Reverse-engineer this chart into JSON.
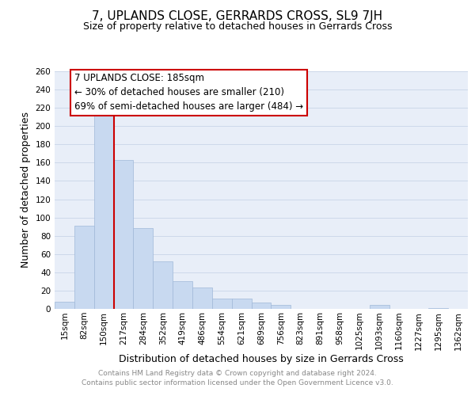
{
  "title": "7, UPLANDS CLOSE, GERRARDS CROSS, SL9 7JH",
  "subtitle": "Size of property relative to detached houses in Gerrards Cross",
  "xlabel": "Distribution of detached houses by size in Gerrards Cross",
  "ylabel": "Number of detached properties",
  "bin_labels": [
    "15sqm",
    "82sqm",
    "150sqm",
    "217sqm",
    "284sqm",
    "352sqm",
    "419sqm",
    "486sqm",
    "554sqm",
    "621sqm",
    "689sqm",
    "756sqm",
    "823sqm",
    "891sqm",
    "958sqm",
    "1025sqm",
    "1093sqm",
    "1160sqm",
    "1227sqm",
    "1295sqm",
    "1362sqm"
  ],
  "bar_heights": [
    8,
    91,
    213,
    163,
    88,
    52,
    30,
    23,
    11,
    11,
    7,
    4,
    0,
    0,
    0,
    0,
    4,
    0,
    0,
    1,
    0
  ],
  "bar_color": "#c8d9f0",
  "bar_edge_color": "#a0b8d8",
  "vline_x_index": 2,
  "vline_color": "#cc0000",
  "ylim": [
    0,
    260
  ],
  "yticks": [
    0,
    20,
    40,
    60,
    80,
    100,
    120,
    140,
    160,
    180,
    200,
    220,
    240,
    260
  ],
  "annotation_line1": "7 UPLANDS CLOSE: 185sqm",
  "annotation_line2": "← 30% of detached houses are smaller (210)",
  "annotation_line3": "69% of semi-detached houses are larger (484) →",
  "annotation_box_color": "#ffffff",
  "annotation_box_edge": "#cc0000",
  "footer_line1": "Contains HM Land Registry data © Crown copyright and database right 2024.",
  "footer_line2": "Contains public sector information licensed under the Open Government Licence v3.0.",
  "title_fontsize": 11,
  "subtitle_fontsize": 9,
  "axis_label_fontsize": 9,
  "tick_fontsize": 7.5,
  "annotation_fontsize": 8.5,
  "footer_fontsize": 6.5,
  "bg_color": "#e8eef8"
}
